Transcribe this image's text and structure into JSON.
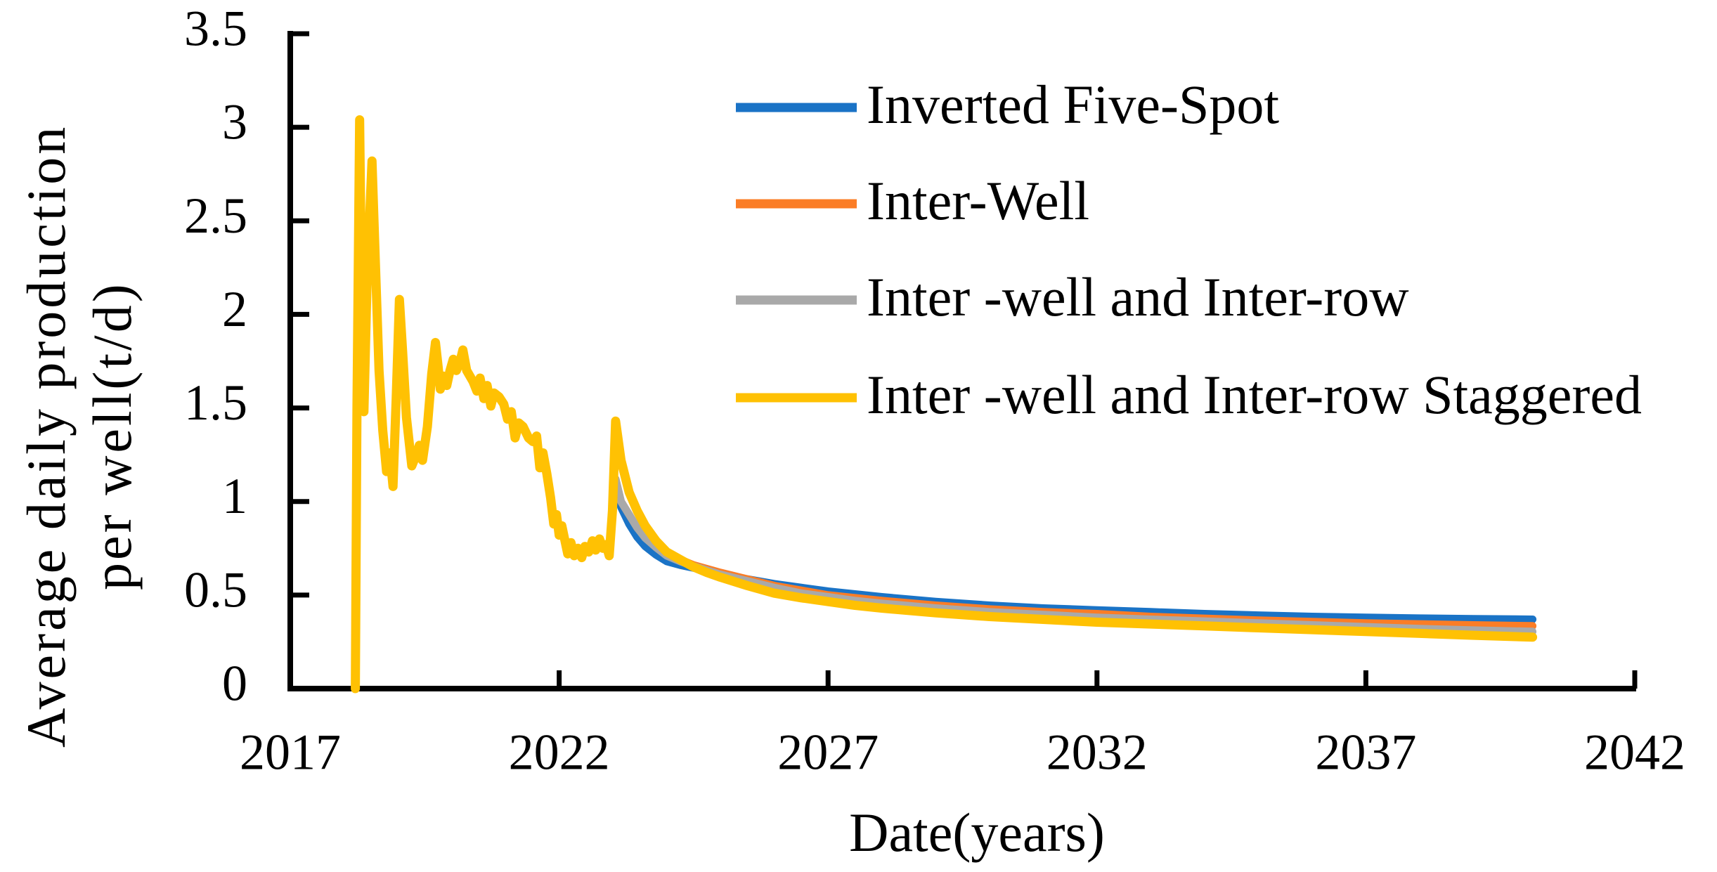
{
  "figure": {
    "kind": "line chart",
    "background": "#ffffff",
    "axis_color": "#000000"
  },
  "chart_data": {
    "type": "line",
    "title": "",
    "xlabel": "Date(years)",
    "ylabel_line1": "Average daily production",
    "ylabel_line2": "per well(t/d)",
    "xlim": [
      2017,
      2042
    ],
    "ylim": [
      0,
      3.5
    ],
    "grid": false,
    "legend_position": "upper right, vertical list",
    "x_ticks": {
      "labels": [
        "2017",
        "2022",
        "2027",
        "2032",
        "2037",
        "2042"
      ],
      "values": [
        2017,
        2022,
        2027,
        2032,
        2037,
        2042
      ]
    },
    "y_ticks": {
      "labels": [
        "0",
        "0.5",
        "1",
        "1.5",
        "2",
        "2.5",
        "3",
        "3.5"
      ],
      "values": [
        0,
        0.5,
        1,
        1.5,
        2,
        2.5,
        3,
        3.5
      ]
    },
    "series": [
      {
        "name": "Inverted Five-Spot",
        "color": "#1A73C6",
        "stroke_width": 11,
        "points": [
          [
            2023.05,
            1.1
          ],
          [
            2023.15,
            0.97
          ],
          [
            2023.3,
            0.88
          ],
          [
            2023.45,
            0.81
          ],
          [
            2023.6,
            0.76
          ],
          [
            2023.8,
            0.715
          ],
          [
            2024.0,
            0.68
          ],
          [
            2024.25,
            0.66
          ],
          [
            2024.5,
            0.645
          ],
          [
            2024.75,
            0.63
          ],
          [
            2025.0,
            0.615
          ],
          [
            2025.5,
            0.585
          ],
          [
            2026.0,
            0.56
          ],
          [
            2026.5,
            0.54
          ],
          [
            2027.0,
            0.52
          ],
          [
            2027.5,
            0.505
          ],
          [
            2028.0,
            0.49
          ],
          [
            2029.0,
            0.465
          ],
          [
            2030.0,
            0.445
          ],
          [
            2031.0,
            0.43
          ],
          [
            2032.0,
            0.42
          ],
          [
            2033.0,
            0.41
          ],
          [
            2034.0,
            0.4
          ],
          [
            2035.0,
            0.392
          ],
          [
            2036.0,
            0.385
          ],
          [
            2037.0,
            0.38
          ],
          [
            2038.0,
            0.376
          ],
          [
            2039.0,
            0.373
          ],
          [
            2040.1,
            0.37
          ]
        ]
      },
      {
        "name": "Inter-Well",
        "color": "#FB7D26",
        "stroke_width": 11,
        "points": [
          [
            2023.05,
            1.12
          ],
          [
            2023.15,
            1.0
          ],
          [
            2023.3,
            0.93
          ],
          [
            2023.45,
            0.86
          ],
          [
            2023.6,
            0.81
          ],
          [
            2023.8,
            0.76
          ],
          [
            2024.0,
            0.72
          ],
          [
            2024.25,
            0.69
          ],
          [
            2024.5,
            0.66
          ],
          [
            2024.75,
            0.64
          ],
          [
            2025.0,
            0.62
          ],
          [
            2025.5,
            0.585
          ],
          [
            2026.0,
            0.55
          ],
          [
            2026.5,
            0.525
          ],
          [
            2027.0,
            0.5
          ],
          [
            2027.5,
            0.485
          ],
          [
            2028.0,
            0.47
          ],
          [
            2029.0,
            0.445
          ],
          [
            2030.0,
            0.425
          ],
          [
            2031.0,
            0.41
          ],
          [
            2032.0,
            0.4
          ],
          [
            2033.0,
            0.385
          ],
          [
            2034.0,
            0.375
          ],
          [
            2035.0,
            0.365
          ],
          [
            2036.0,
            0.358
          ],
          [
            2037.0,
            0.35
          ],
          [
            2038.0,
            0.345
          ],
          [
            2039.0,
            0.34
          ],
          [
            2040.1,
            0.335
          ]
        ]
      },
      {
        "name": "Inter -well and Inter-row",
        "color": "#A9A9A9",
        "stroke_width": 11,
        "points": [
          [
            2023.05,
            1.12
          ],
          [
            2023.15,
            1.0
          ],
          [
            2023.3,
            0.93
          ],
          [
            2023.45,
            0.86
          ],
          [
            2023.6,
            0.805
          ],
          [
            2023.8,
            0.755
          ],
          [
            2024.0,
            0.71
          ],
          [
            2024.25,
            0.68
          ],
          [
            2024.5,
            0.655
          ],
          [
            2024.75,
            0.632
          ],
          [
            2025.0,
            0.61
          ],
          [
            2025.5,
            0.575
          ],
          [
            2026.0,
            0.54
          ],
          [
            2026.5,
            0.51
          ],
          [
            2027.0,
            0.49
          ],
          [
            2027.5,
            0.47
          ],
          [
            2028.0,
            0.455
          ],
          [
            2029.0,
            0.43
          ],
          [
            2030.0,
            0.41
          ],
          [
            2031.0,
            0.395
          ],
          [
            2032.0,
            0.38
          ],
          [
            2033.0,
            0.37
          ],
          [
            2034.0,
            0.36
          ],
          [
            2035.0,
            0.35
          ],
          [
            2036.0,
            0.34
          ],
          [
            2037.0,
            0.33
          ],
          [
            2038.0,
            0.32
          ],
          [
            2039.0,
            0.312
          ],
          [
            2040.1,
            0.305
          ]
        ]
      },
      {
        "name": "Inter -well and Inter-row Staggered",
        "color": "#FFC103",
        "stroke_width": 13,
        "points": [
          [
            2018.21,
            0.0
          ],
          [
            2018.24,
            1.5
          ],
          [
            2018.29,
            3.04
          ],
          [
            2018.33,
            2.0
          ],
          [
            2018.37,
            1.48
          ],
          [
            2018.43,
            2.2
          ],
          [
            2018.52,
            2.82
          ],
          [
            2018.58,
            2.3
          ],
          [
            2018.65,
            1.7
          ],
          [
            2018.72,
            1.38
          ],
          [
            2018.79,
            1.16
          ],
          [
            2018.85,
            1.26
          ],
          [
            2018.91,
            1.08
          ],
          [
            2018.97,
            1.55
          ],
          [
            2019.03,
            2.08
          ],
          [
            2019.09,
            1.8
          ],
          [
            2019.16,
            1.45
          ],
          [
            2019.26,
            1.19
          ],
          [
            2019.33,
            1.24
          ],
          [
            2019.4,
            1.3
          ],
          [
            2019.46,
            1.22
          ],
          [
            2019.55,
            1.4
          ],
          [
            2019.63,
            1.68
          ],
          [
            2019.7,
            1.85
          ],
          [
            2019.75,
            1.72
          ],
          [
            2019.79,
            1.6
          ],
          [
            2019.85,
            1.67
          ],
          [
            2019.91,
            1.62
          ],
          [
            2019.97,
            1.7
          ],
          [
            2020.03,
            1.76
          ],
          [
            2020.09,
            1.7
          ],
          [
            2020.15,
            1.74
          ],
          [
            2020.21,
            1.81
          ],
          [
            2020.28,
            1.7
          ],
          [
            2020.34,
            1.67
          ],
          [
            2020.4,
            1.64
          ],
          [
            2020.47,
            1.59
          ],
          [
            2020.53,
            1.66
          ],
          [
            2020.6,
            1.55
          ],
          [
            2020.66,
            1.62
          ],
          [
            2020.73,
            1.51
          ],
          [
            2020.79,
            1.58
          ],
          [
            2020.88,
            1.56
          ],
          [
            2020.97,
            1.52
          ],
          [
            2021.04,
            1.44
          ],
          [
            2021.11,
            1.48
          ],
          [
            2021.18,
            1.34
          ],
          [
            2021.25,
            1.42
          ],
          [
            2021.33,
            1.4
          ],
          [
            2021.43,
            1.34
          ],
          [
            2021.51,
            1.32
          ],
          [
            2021.58,
            1.35
          ],
          [
            2021.64,
            1.18
          ],
          [
            2021.7,
            1.26
          ],
          [
            2021.77,
            1.15
          ],
          [
            2021.84,
            1.02
          ],
          [
            2021.9,
            0.88
          ],
          [
            2021.95,
            0.93
          ],
          [
            2022.0,
            0.82
          ],
          [
            2022.05,
            0.87
          ],
          [
            2022.1,
            0.8
          ],
          [
            2022.16,
            0.72
          ],
          [
            2022.22,
            0.78
          ],
          [
            2022.28,
            0.71
          ],
          [
            2022.35,
            0.75
          ],
          [
            2022.42,
            0.7
          ],
          [
            2022.48,
            0.76
          ],
          [
            2022.55,
            0.73
          ],
          [
            2022.62,
            0.79
          ],
          [
            2022.68,
            0.74
          ],
          [
            2022.75,
            0.8
          ],
          [
            2022.81,
            0.75
          ],
          [
            2022.87,
            0.77
          ],
          [
            2022.93,
            0.71
          ],
          [
            2022.99,
            0.95
          ],
          [
            2023.05,
            1.43
          ],
          [
            2023.15,
            1.22
          ],
          [
            2023.3,
            1.05
          ],
          [
            2023.45,
            0.95
          ],
          [
            2023.6,
            0.87
          ],
          [
            2023.8,
            0.79
          ],
          [
            2024.0,
            0.73
          ],
          [
            2024.25,
            0.69
          ],
          [
            2024.5,
            0.65
          ],
          [
            2024.75,
            0.62
          ],
          [
            2025.0,
            0.595
          ],
          [
            2025.5,
            0.55
          ],
          [
            2026.0,
            0.51
          ],
          [
            2026.5,
            0.485
          ],
          [
            2027.0,
            0.465
          ],
          [
            2027.5,
            0.445
          ],
          [
            2028.0,
            0.43
          ],
          [
            2029.0,
            0.405
          ],
          [
            2030.0,
            0.385
          ],
          [
            2031.0,
            0.37
          ],
          [
            2032.0,
            0.355
          ],
          [
            2033.0,
            0.345
          ],
          [
            2034.0,
            0.335
          ],
          [
            2035.0,
            0.325
          ],
          [
            2036.0,
            0.315
          ],
          [
            2037.0,
            0.305
          ],
          [
            2038.0,
            0.295
          ],
          [
            2039.0,
            0.285
          ],
          [
            2040.1,
            0.275
          ]
        ]
      }
    ]
  }
}
